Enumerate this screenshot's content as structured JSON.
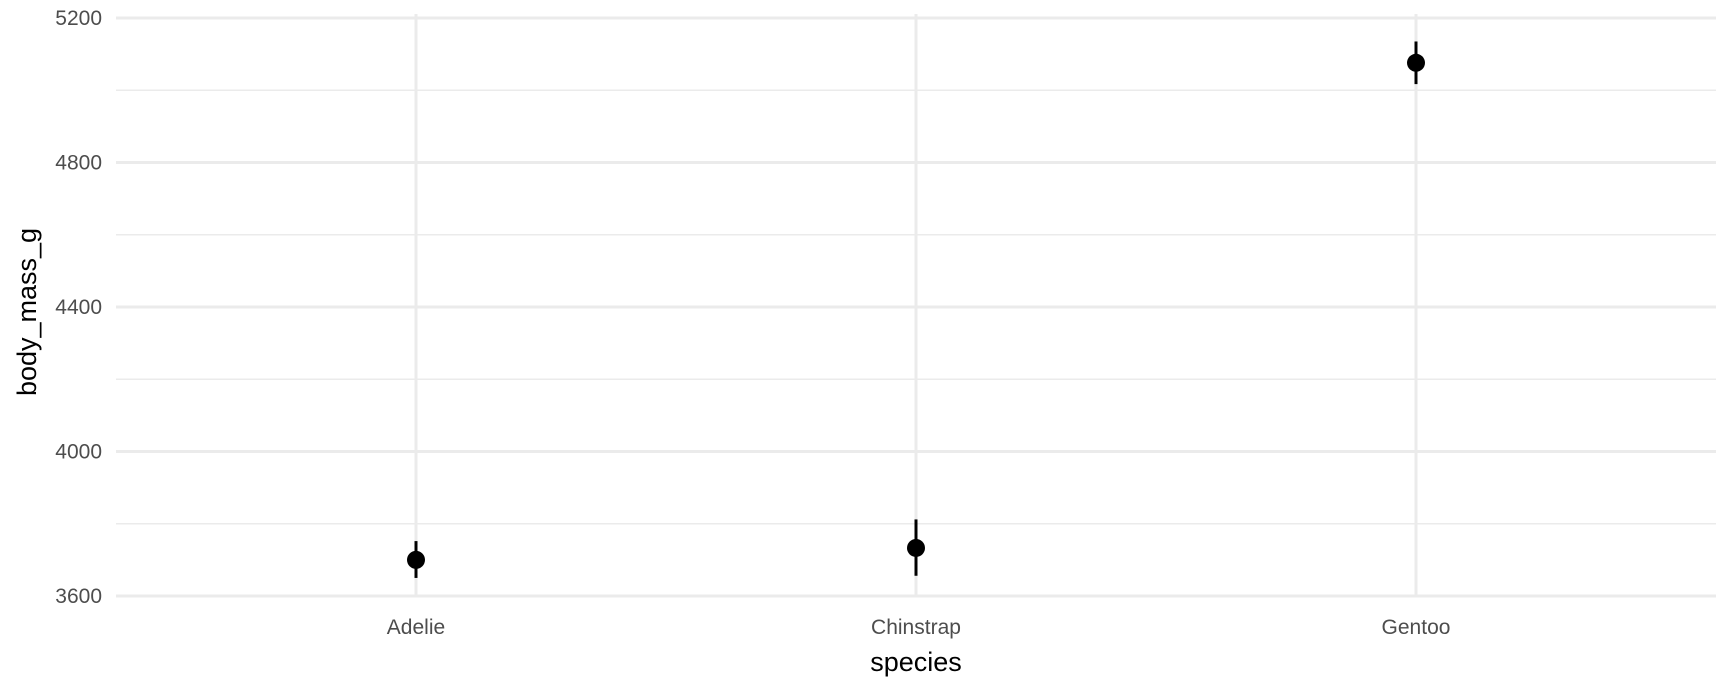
{
  "chart_data": {
    "type": "scatter",
    "title": "",
    "xlabel": "species",
    "ylabel": "body_mass_g",
    "categories": [
      "Adelie",
      "Chinstrap",
      "Gentoo"
    ],
    "points": [
      {
        "category": "Adelie",
        "mean": 3700,
        "lower": 3650,
        "upper": 3752
      },
      {
        "category": "Chinstrap",
        "mean": 3733,
        "lower": 3656,
        "upper": 3812
      },
      {
        "category": "Gentoo",
        "mean": 5076,
        "lower": 5017,
        "upper": 5135
      }
    ],
    "ylim": [
      3600,
      5200
    ],
    "y_ticks": [
      3600,
      4000,
      4400,
      4800,
      5200
    ],
    "y_tick_labels": [
      "3600",
      "4000",
      "4400",
      "4800",
      "5200"
    ],
    "y_minor_ticks": [
      3800,
      4200,
      4600,
      5000
    ],
    "grid": true,
    "legend": "none",
    "colors": {
      "point": "#000000",
      "grid": "#ebebeb",
      "tick_text": "#4d4d4d"
    }
  }
}
